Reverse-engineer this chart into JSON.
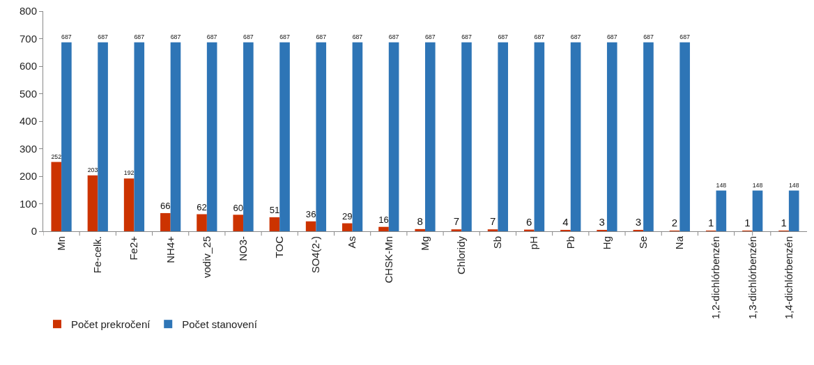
{
  "chart_data": {
    "type": "bar",
    "categories": [
      "Mn",
      "Fe-celk.",
      "Fe2+",
      "NH4+",
      "vodiv_25",
      "NO3-",
      "TOC",
      "SO4(2-)",
      "As",
      "CHSK-Mn",
      "Mg",
      "Chloridy",
      "Sb",
      "pH",
      "Pb",
      "Hg",
      "Se",
      "Na",
      "1,2-dichlórbenzén",
      "1,3-dichlórbenzén",
      "1,4-dichlórbenzén"
    ],
    "series": [
      {
        "name": "Počet prekročení",
        "color": "#cc3300",
        "values": [
          252,
          203,
          192,
          66,
          62,
          60,
          51,
          36,
          29,
          16,
          8,
          7,
          7,
          6,
          4,
          3,
          3,
          2,
          1,
          1,
          1
        ]
      },
      {
        "name": "Počet stanovení",
        "color": "#2e75b6",
        "values": [
          687,
          687,
          687,
          687,
          687,
          687,
          687,
          687,
          687,
          687,
          687,
          687,
          687,
          687,
          687,
          687,
          687,
          687,
          148,
          148,
          148
        ]
      }
    ],
    "ylim": [
      0,
      800
    ],
    "yticks": [
      0,
      100,
      200,
      300,
      400,
      500,
      600,
      700,
      800
    ],
    "grid": false,
    "legend": "bottom left",
    "data_labels": true
  }
}
